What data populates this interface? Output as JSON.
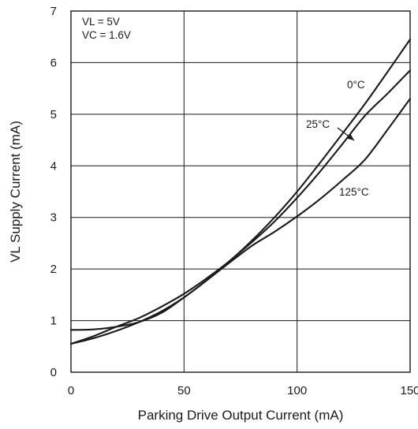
{
  "chart_data": {
    "type": "line",
    "xlabel": "Parking Drive Output Current (mA)",
    "ylabel": "VL Supply Current (mA)",
    "xlim": [
      0,
      150
    ],
    "ylim": [
      0,
      7
    ],
    "xticks": [
      0,
      50,
      100,
      150
    ],
    "yticks": [
      0,
      1,
      2,
      3,
      4,
      5,
      6,
      7
    ],
    "grid": true,
    "legend": "none",
    "conditions": [
      "VL = 5V",
      "VC = 1.6V"
    ],
    "x": [
      0,
      10,
      20,
      30,
      40,
      50,
      60,
      70,
      80,
      90,
      100,
      110,
      120,
      130,
      140,
      150
    ],
    "series": [
      {
        "name": "0°C",
        "values": [
          0.55,
          0.7,
          0.88,
          1.05,
          1.27,
          1.52,
          1.82,
          2.15,
          2.55,
          3.0,
          3.5,
          4.05,
          4.62,
          5.2,
          5.82,
          6.45
        ]
      },
      {
        "name": "25°C",
        "values": [
          0.55,
          0.66,
          0.8,
          0.97,
          1.18,
          1.45,
          1.78,
          2.15,
          2.52,
          2.92,
          3.38,
          3.88,
          4.42,
          4.97,
          5.4,
          5.85
        ]
      },
      {
        "name": "125°C",
        "values": [
          0.82,
          0.83,
          0.88,
          0.97,
          1.15,
          1.45,
          1.78,
          2.12,
          2.45,
          2.72,
          3.02,
          3.35,
          3.72,
          4.12,
          4.7,
          5.3
        ]
      }
    ]
  }
}
